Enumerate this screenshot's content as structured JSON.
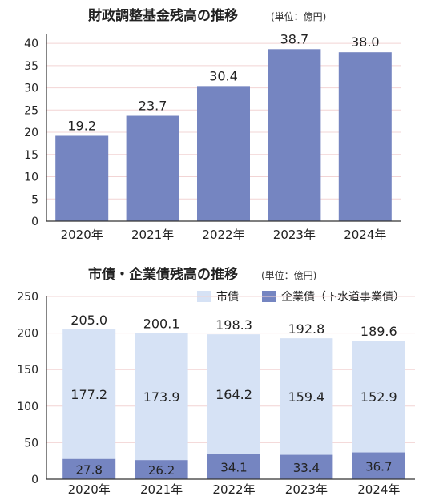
{
  "chart_data": [
    {
      "type": "bar",
      "title": "財政調整基金残高の推移",
      "unit": "(単位：億円)",
      "categories": [
        "2020年",
        "2021年",
        "2022年",
        "2023年",
        "2024年"
      ],
      "values": [
        19.2,
        23.7,
        30.4,
        38.7,
        38.0
      ],
      "data_labels": [
        "19.2",
        "23.7",
        "30.4",
        "38.7",
        "38.0"
      ],
      "ylim": [
        0,
        42
      ],
      "yticks": [
        0,
        5,
        10,
        15,
        20,
        25,
        30,
        35,
        40
      ],
      "grid": true,
      "colors": {
        "bar": "#7585c1",
        "grid": "#f2d4d4",
        "axis": "#333333"
      }
    },
    {
      "type": "bar",
      "stacked": true,
      "title": "市債・企業債残高の推移",
      "unit": "(単位：億円)",
      "categories": [
        "2020年",
        "2021年",
        "2022年",
        "2023年",
        "2024年"
      ],
      "series": [
        {
          "name": "企業債（下水道事業債）",
          "values": [
            27.8,
            26.2,
            34.1,
            33.4,
            36.7
          ],
          "labels": [
            "27.8",
            "26.2",
            "34.1",
            "33.4",
            "36.7"
          ],
          "color": "#7585c1"
        },
        {
          "name": "市債",
          "values": [
            177.2,
            173.9,
            164.2,
            159.4,
            152.9
          ],
          "labels": [
            "177.2",
            "173.9",
            "164.2",
            "159.4",
            "152.9"
          ],
          "color": "#d6e2f5"
        }
      ],
      "totals": [
        205.0,
        200.1,
        198.3,
        192.8,
        189.6
      ],
      "total_labels": [
        "205.0",
        "200.1",
        "198.3",
        "192.8",
        "189.6"
      ],
      "ylim": [
        0,
        250
      ],
      "yticks": [
        0,
        50,
        100,
        150,
        200,
        250
      ],
      "legend_position": "top-right",
      "grid": true,
      "colors": {
        "grid": "#f2d4d4",
        "axis": "#333333"
      }
    }
  ]
}
